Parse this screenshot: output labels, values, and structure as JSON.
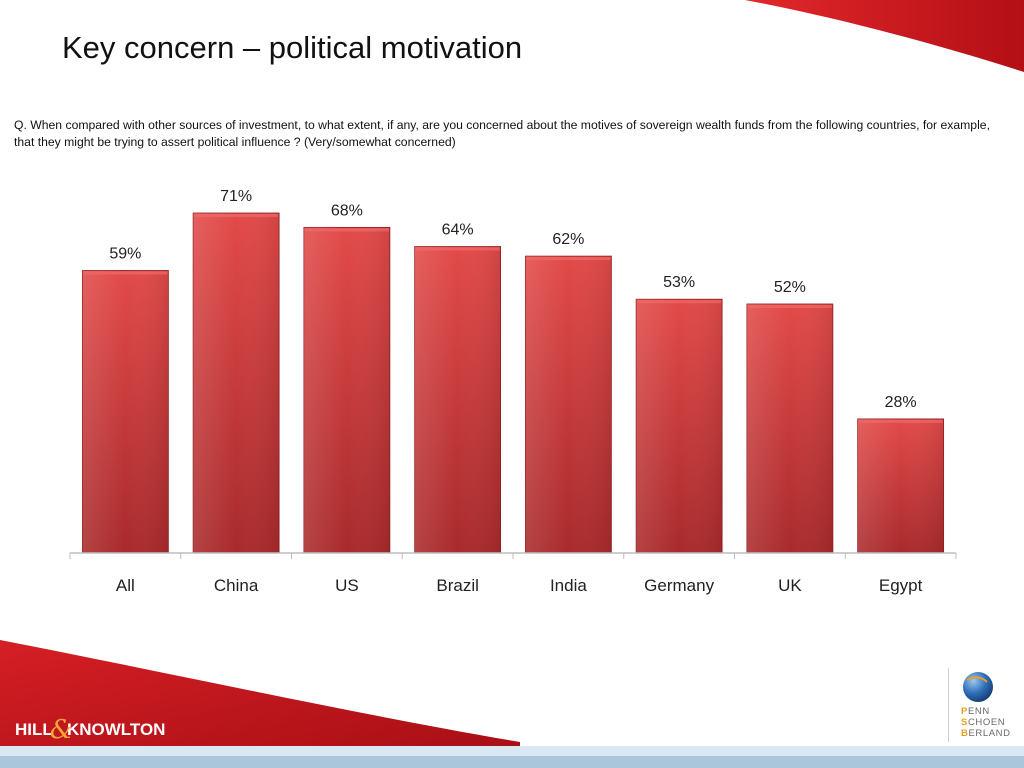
{
  "slide": {
    "title": "Key concern – political motivation",
    "question": "Q. When compared with other sources of investment, to what extent, if any, are you  concerned about the motives of  sovereign wealth funds from the following countries, for example, that they might be trying to assert political influence ? (Very/somewhat concerned)"
  },
  "chart_data": {
    "type": "bar",
    "categories": [
      "All",
      "China",
      "US",
      "Brazil",
      "India",
      "Germany",
      "UK",
      "Egypt"
    ],
    "values": [
      59,
      71,
      68,
      64,
      62,
      53,
      52,
      28
    ],
    "value_labels": [
      "59%",
      "71%",
      "68%",
      "64%",
      "62%",
      "53%",
      "52%",
      "28%"
    ],
    "title": "",
    "xlabel": "",
    "ylabel": "",
    "ylim": [
      0,
      100
    ],
    "grid": false,
    "bar_color": "#d63c3c"
  },
  "logos": {
    "left": {
      "part1": "HILL",
      "amp": "&",
      "part2": "KNOWLTON"
    },
    "right": [
      {
        "first": "P",
        "rest": "ENN"
      },
      {
        "first": "S",
        "rest": "CHOEN"
      },
      {
        "first": "B",
        "rest": "ERLAND"
      }
    ]
  },
  "colors": {
    "brand_red": "#c0161d",
    "accent_orange": "#f3a53a",
    "band_blue": "#a9c6dc"
  }
}
